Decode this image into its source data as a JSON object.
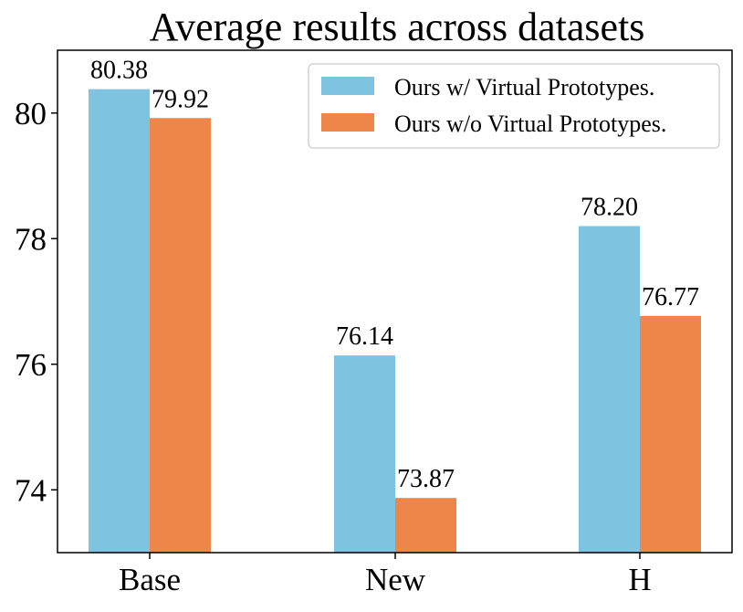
{
  "chart_data": {
    "type": "bar",
    "title": "Average results across datasets",
    "xlabel": "",
    "ylabel": "",
    "categories": [
      "Base",
      "New",
      "H"
    ],
    "series": [
      {
        "name": "Ours w/ Virtual Prototypes.",
        "values": [
          80.38,
          76.14,
          78.2
        ],
        "labels": [
          "80.38",
          "76.14",
          "78.20"
        ],
        "color": "#7EC4E0"
      },
      {
        "name": "Ours w/o Virtual Prototypes.",
        "values": [
          79.92,
          73.87,
          76.77
        ],
        "labels": [
          "79.92",
          "73.87",
          "76.77"
        ],
        "color": "#EE864A"
      }
    ],
    "ylim": [
      73,
      81
    ],
    "yticks": [
      "74",
      "76",
      "78",
      "80"
    ],
    "grid": false,
    "legend": "top-right"
  }
}
